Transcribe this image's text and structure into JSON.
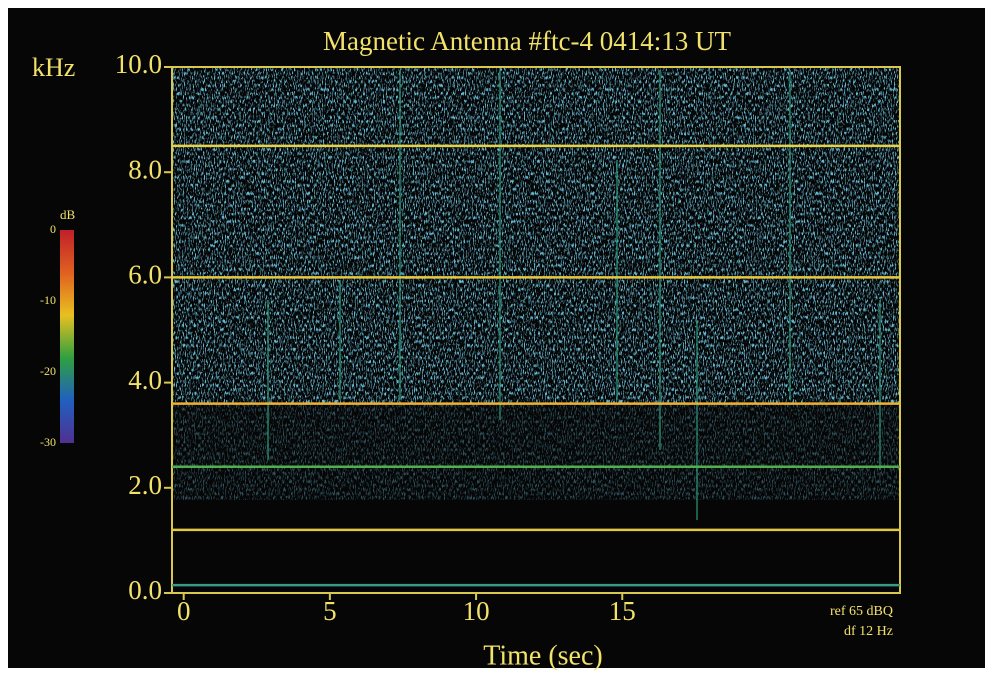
{
  "chart_data": {
    "type": "spectrogram",
    "title": "Magnetic Antenna #ftc-4   0414:13 UT",
    "x_label": "Time  (sec)",
    "y_label": "kHz",
    "xlim": [
      -0.4,
      24.5
    ],
    "ylim": [
      0,
      10
    ],
    "xticks": [
      0,
      5,
      10,
      15
    ],
    "yticks": [
      {
        "value": 0,
        "label": "0.0"
      },
      {
        "value": 2,
        "label": "2.0"
      },
      {
        "value": 4,
        "label": "4.0"
      },
      {
        "value": 6,
        "label": "6.0"
      },
      {
        "value": 8,
        "label": "8.0"
      },
      {
        "value": 10,
        "label": "10.0"
      }
    ],
    "lines": [
      {
        "value": 8.5,
        "color": "#e6d24a"
      },
      {
        "value": 6.0,
        "color": "#e8c840"
      },
      {
        "value": 3.6,
        "color": "#f0b030"
      },
      {
        "value": 2.4,
        "color": "#50b050"
      },
      {
        "value": 1.2,
        "color": "#e0c840"
      },
      {
        "value": 0.15,
        "color": "#3a9a8a"
      }
    ],
    "annotations": [
      "ref 65 dBQ",
      "df 12 Hz"
    ],
    "colorbar": {
      "label": "dB",
      "lim": [
        -30,
        0
      ],
      "ticks": [
        0,
        -10,
        -20,
        -30
      ],
      "colors": [
        "#c0202a",
        "#e06020",
        "#e8c020",
        "#30a040",
        "#2060c0",
        "#503090"
      ]
    }
  }
}
